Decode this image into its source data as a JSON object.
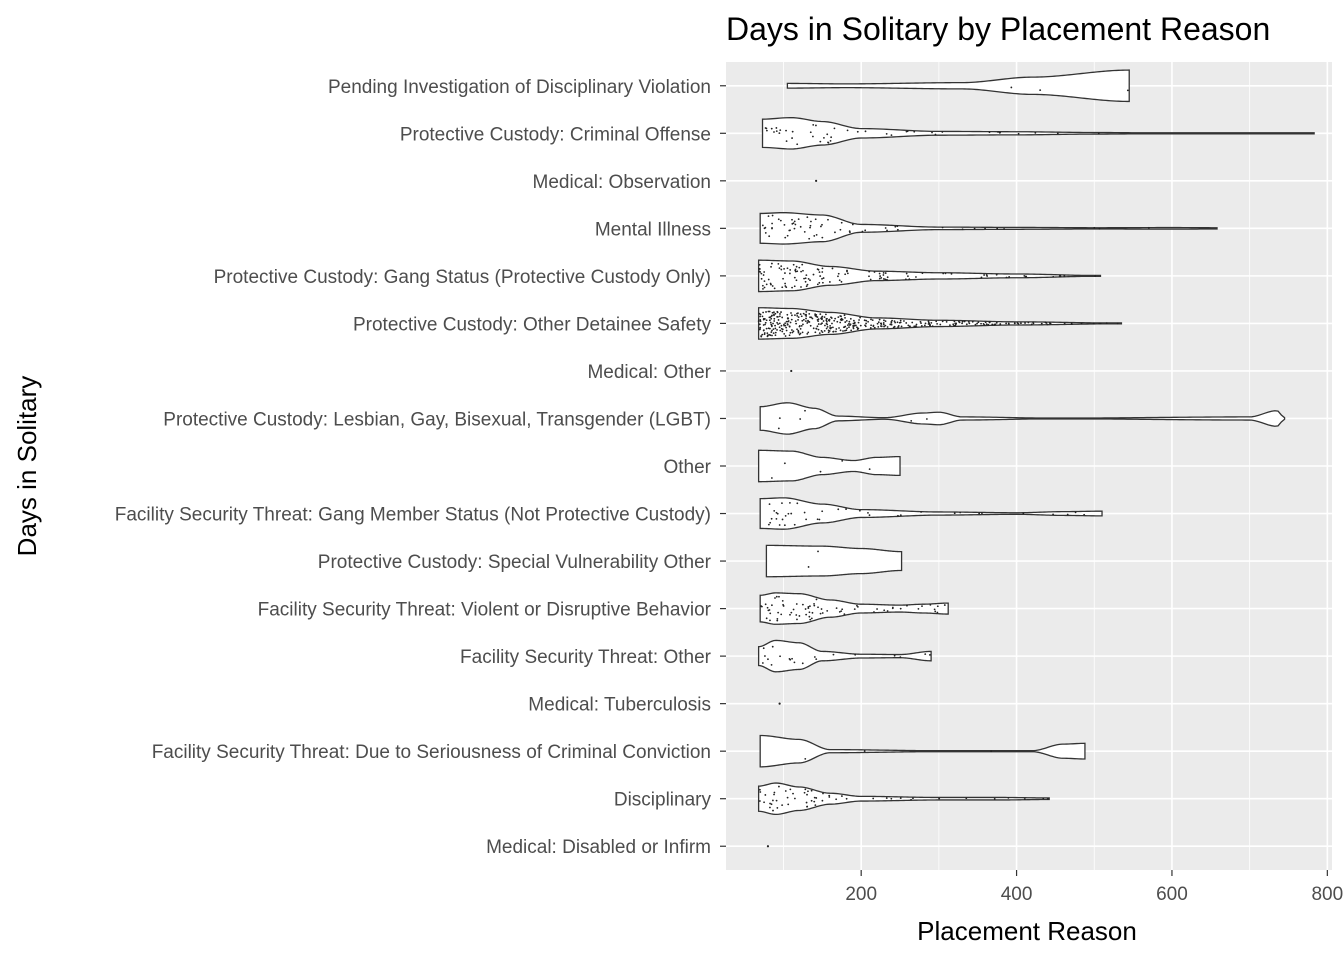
{
  "chart_data": {
    "type": "violin",
    "title": "Days in Solitary by Placement Reason",
    "xlabel": "Placement Reason",
    "ylabel": "Days in Solitary",
    "xlim": [
      26,
      806
    ],
    "xticks": [
      200,
      400,
      600,
      800
    ],
    "grid": true,
    "colors": {
      "panel": "#ebebeb",
      "grid": "#ffffff",
      "violin_fill": "#ffffff",
      "outline": "#333333",
      "points": "#222222",
      "tick_text": "#4d4d4d"
    },
    "categories": [
      {
        "label": "Pending Investigation of Disciplinary Violation",
        "min": 105,
        "max": 545,
        "n": 3,
        "profile": [
          [
            105,
            0.15
          ],
          [
            180,
            0.12
          ],
          [
            330,
            0.2
          ],
          [
            420,
            0.55
          ],
          [
            545,
            1.0
          ]
        ]
      },
      {
        "label": "Protective Custody: Criminal Offense",
        "min": 73,
        "max": 783,
        "n": 45,
        "profile": [
          [
            73,
            0.9
          ],
          [
            110,
            1.0
          ],
          [
            150,
            0.75
          ],
          [
            200,
            0.3
          ],
          [
            300,
            0.12
          ],
          [
            400,
            0.1
          ],
          [
            500,
            0.05
          ],
          [
            600,
            0.02
          ],
          [
            783,
            0.01
          ]
        ]
      },
      {
        "label": "Medical: Observation",
        "min": 142,
        "max": 142,
        "n": 1,
        "profile": []
      },
      {
        "label": "Mental Illness",
        "min": 70,
        "max": 658,
        "n": 60,
        "profile": [
          [
            70,
            0.95
          ],
          [
            100,
            1.0
          ],
          [
            150,
            0.85
          ],
          [
            200,
            0.25
          ],
          [
            300,
            0.08
          ],
          [
            400,
            0.06
          ],
          [
            500,
            0.04
          ],
          [
            600,
            0.05
          ],
          [
            658,
            0.04
          ]
        ]
      },
      {
        "label": "Protective Custody: Gang Status (Protective Custody Only)",
        "min": 68,
        "max": 508,
        "n": 120,
        "profile": [
          [
            68,
            1.0
          ],
          [
            110,
            0.95
          ],
          [
            160,
            0.6
          ],
          [
            220,
            0.3
          ],
          [
            300,
            0.2
          ],
          [
            400,
            0.12
          ],
          [
            508,
            0.02
          ]
        ]
      },
      {
        "label": "Protective Custody: Other Detainee Safety",
        "min": 68,
        "max": 535,
        "n": 400,
        "profile": [
          [
            68,
            1.0
          ],
          [
            110,
            0.95
          ],
          [
            160,
            0.7
          ],
          [
            220,
            0.35
          ],
          [
            300,
            0.2
          ],
          [
            400,
            0.1
          ],
          [
            535,
            0.02
          ]
        ]
      },
      {
        "label": "Medical: Other",
        "min": 110,
        "max": 110,
        "n": 1,
        "profile": []
      },
      {
        "label": "Protective Custody: Lesbian, Gay, Bisexual, Transgender (LGBT)",
        "min": 70,
        "max": 745,
        "n": 6,
        "profile": [
          [
            70,
            0.75
          ],
          [
            105,
            1.0
          ],
          [
            140,
            0.65
          ],
          [
            170,
            0.15
          ],
          [
            230,
            0.05
          ],
          [
            280,
            0.35
          ],
          [
            300,
            0.4
          ],
          [
            330,
            0.1
          ],
          [
            450,
            0.02
          ],
          [
            700,
            0.1
          ],
          [
            735,
            0.5
          ],
          [
            745,
            0.05
          ]
        ]
      },
      {
        "label": "Other",
        "min": 68,
        "max": 250,
        "n": 5,
        "profile": [
          [
            68,
            1.0
          ],
          [
            110,
            0.95
          ],
          [
            150,
            0.55
          ],
          [
            190,
            0.35
          ],
          [
            220,
            0.55
          ],
          [
            250,
            0.6
          ]
        ]
      },
      {
        "label": "Facility Security Threat: Gang Member Status (Not Protective Custody)",
        "min": 70,
        "max": 510,
        "n": 40,
        "profile": [
          [
            70,
            0.95
          ],
          [
            100,
            1.0
          ],
          [
            150,
            0.6
          ],
          [
            200,
            0.25
          ],
          [
            300,
            0.1
          ],
          [
            400,
            0.05
          ],
          [
            460,
            0.12
          ],
          [
            510,
            0.15
          ]
        ]
      },
      {
        "label": "Protective Custody: Special Vulnerability Other",
        "min": 78,
        "max": 252,
        "n": 2,
        "profile": [
          [
            78,
            1.0
          ],
          [
            150,
            0.95
          ],
          [
            200,
            0.8
          ],
          [
            252,
            0.6
          ]
        ]
      },
      {
        "label": "Facility Security Threat: Violent or Disruptive Behavior",
        "min": 70,
        "max": 312,
        "n": 70,
        "profile": [
          [
            70,
            0.85
          ],
          [
            90,
            1.0
          ],
          [
            120,
            0.95
          ],
          [
            160,
            0.55
          ],
          [
            200,
            0.28
          ],
          [
            250,
            0.22
          ],
          [
            280,
            0.28
          ],
          [
            312,
            0.35
          ]
        ]
      },
      {
        "label": "Facility Security Threat: Other",
        "min": 68,
        "max": 290,
        "n": 20,
        "profile": [
          [
            68,
            0.6
          ],
          [
            90,
            1.0
          ],
          [
            120,
            0.85
          ],
          [
            150,
            0.3
          ],
          [
            200,
            0.12
          ],
          [
            250,
            0.1
          ],
          [
            290,
            0.3
          ]
        ]
      },
      {
        "label": "Medical: Tuberculosis",
        "min": 95,
        "max": 95,
        "n": 1,
        "profile": []
      },
      {
        "label": "Facility Security Threat: Due to Seriousness of Criminal Conviction",
        "min": 70,
        "max": 488,
        "n": 3,
        "profile": [
          [
            70,
            1.0
          ],
          [
            120,
            0.75
          ],
          [
            160,
            0.1
          ],
          [
            300,
            0.03
          ],
          [
            420,
            0.03
          ],
          [
            460,
            0.45
          ],
          [
            488,
            0.5
          ]
        ]
      },
      {
        "label": "Disciplinary",
        "min": 68,
        "max": 442,
        "n": 55,
        "profile": [
          [
            68,
            0.8
          ],
          [
            90,
            1.0
          ],
          [
            120,
            0.75
          ],
          [
            160,
            0.35
          ],
          [
            200,
            0.15
          ],
          [
            300,
            0.08
          ],
          [
            380,
            0.08
          ],
          [
            442,
            0.05
          ]
        ]
      },
      {
        "label": "Medical: Disabled or Infirm",
        "min": 80,
        "max": 80,
        "n": 1,
        "profile": []
      }
    ]
  }
}
